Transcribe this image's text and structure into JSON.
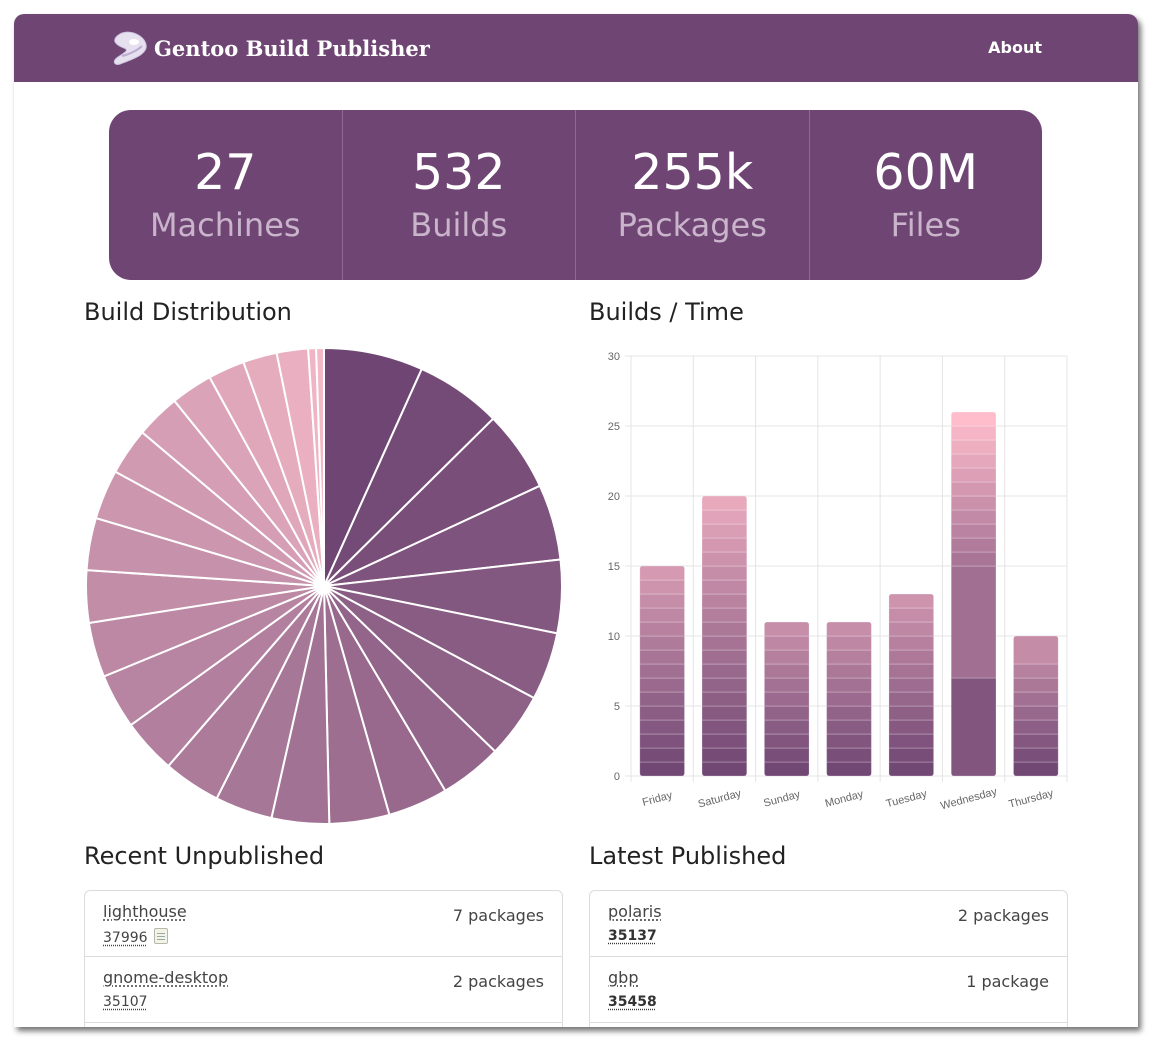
{
  "app": {
    "title": "Gentoo Build Publisher",
    "about_label": "About"
  },
  "stats": [
    {
      "value": "27",
      "label": "Machines"
    },
    {
      "value": "532",
      "label": "Builds"
    },
    {
      "value": "255k",
      "label": "Packages"
    },
    {
      "value": "60M",
      "label": "Files"
    }
  ],
  "sections": {
    "distribution": "Build Distribution",
    "builds_time": "Builds / Time",
    "unpublished": "Recent Unpublished",
    "published": "Latest Published"
  },
  "chart_data": [
    {
      "type": "pie",
      "title": "Build Distribution",
      "values": [
        38,
        33,
        31,
        29,
        28,
        26,
        25,
        24,
        23,
        23,
        22,
        22,
        22,
        21,
        21,
        21,
        20,
        20,
        19,
        18,
        17,
        16,
        14,
        13,
        12,
        3,
        3
      ],
      "colors": {
        "start": "#6f4673",
        "end": "#f4b9c8"
      }
    },
    {
      "type": "bar",
      "stacked": true,
      "title": "Builds / Time",
      "categories": [
        "Friday",
        "Saturday",
        "Sunday",
        "Monday",
        "Tuesday",
        "Wednesday",
        "Thursday"
      ],
      "totals": [
        15,
        20,
        11,
        11,
        13,
        26,
        10
      ],
      "segments": [
        [
          1,
          1,
          1,
          1,
          1,
          1,
          1,
          1,
          1,
          1,
          1,
          1,
          1,
          1,
          1
        ],
        [
          1,
          1,
          1,
          1,
          1,
          1,
          1,
          1,
          1,
          1,
          1,
          1,
          1,
          1,
          1,
          1,
          1,
          1,
          1,
          1
        ],
        [
          1,
          1,
          1,
          1,
          1,
          1,
          1,
          1,
          1,
          1,
          1
        ],
        [
          1,
          1,
          1,
          1,
          1,
          1,
          1,
          1,
          1,
          1,
          1
        ],
        [
          1,
          1,
          1,
          1,
          1,
          1,
          1,
          1,
          1,
          1,
          1,
          1,
          1
        ],
        [
          7,
          8,
          1,
          1,
          1,
          1,
          1,
          1,
          1,
          1,
          1,
          1,
          1
        ],
        [
          1,
          1,
          1,
          1,
          1,
          1,
          1,
          1,
          2
        ]
      ],
      "ylim": [
        0,
        30
      ],
      "yticks": [
        0,
        5,
        10,
        15,
        20,
        25,
        30
      ],
      "grid": true,
      "colors": {
        "base": "#6f4673",
        "top": "#ffbccb"
      }
    }
  ],
  "recent_unpublished": [
    {
      "machine": "lighthouse",
      "build": "37996",
      "packages": "7 packages",
      "has_note": true
    },
    {
      "machine": "gnome-desktop",
      "build": "35107",
      "packages": "2 packages",
      "has_note": false
    }
  ],
  "latest_published": [
    {
      "machine": "polaris",
      "build": "35137",
      "packages": "2 packages"
    },
    {
      "machine": "gbp",
      "build": "35458",
      "packages": "1 package"
    }
  ]
}
